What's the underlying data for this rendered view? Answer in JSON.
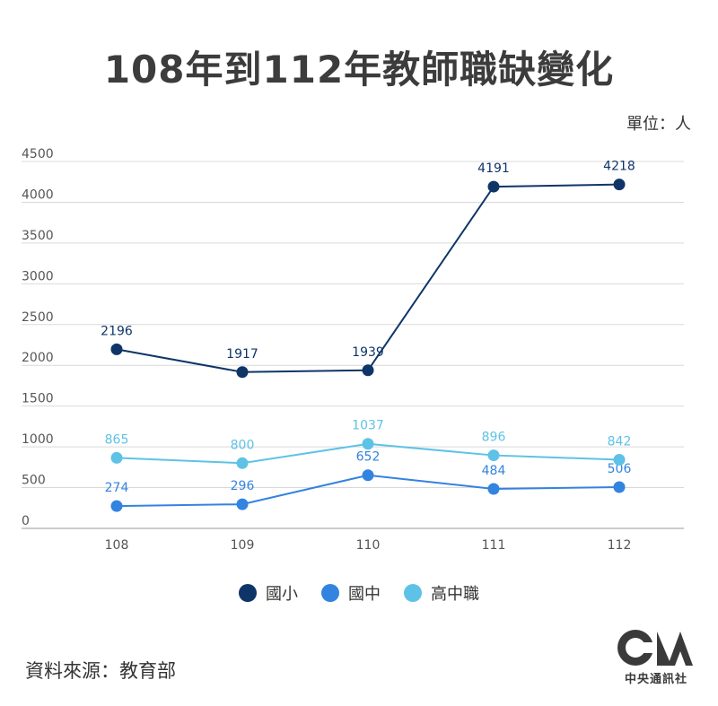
{
  "chart_data": {
    "type": "line",
    "title": "108年到112年教師職缺變化",
    "unit_label": "單位：人",
    "categories": [
      "108",
      "109",
      "110",
      "111",
      "112"
    ],
    "y_ticks": [
      "4500",
      "4000",
      "3500",
      "3000",
      "2500",
      "2000",
      "1500",
      "1000",
      "500",
      "0"
    ],
    "ylim": [
      0,
      4500
    ],
    "grid": true,
    "legend_position": "bottom",
    "series": [
      {
        "name": "國小",
        "color": "#0f3568",
        "values": [
          2196,
          1917,
          1939,
          4191,
          4218
        ]
      },
      {
        "name": "國中",
        "color": "#3383e0",
        "values": [
          274,
          296,
          652,
          484,
          506
        ]
      },
      {
        "name": "高中職",
        "color": "#5ec2e6",
        "values": [
          865,
          800,
          1037,
          896,
          842
        ]
      }
    ]
  },
  "source": "資料來源：教育部",
  "logo": {
    "text": "中央通訊社"
  }
}
